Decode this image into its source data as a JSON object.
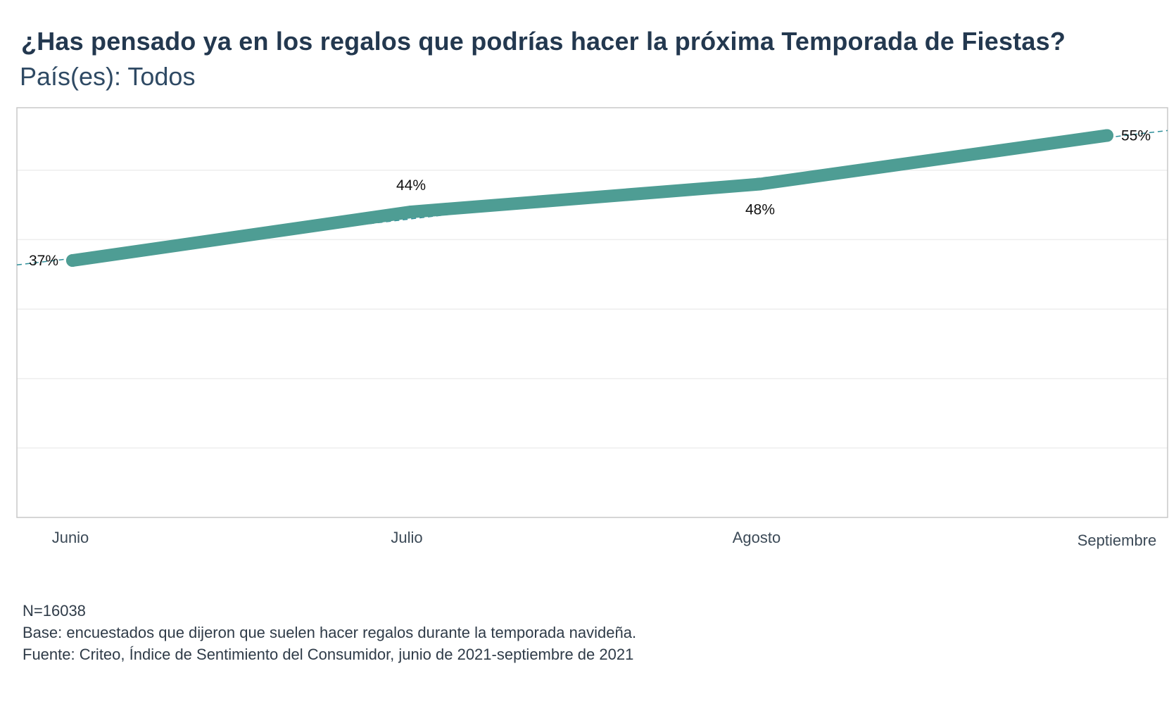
{
  "title": "¿Has pensado ya en los regalos que podrías hacer la próxima Temporada de Fiestas?",
  "subtitle": "País(es): Todos",
  "chart_data": {
    "type": "line",
    "categories": [
      "Junio",
      "Julio",
      "Agosto",
      "Septiembre"
    ],
    "series": [
      {
        "name": "",
        "values": [
          37,
          44,
          48,
          55
        ],
        "value_labels": [
          "37%",
          "44%",
          "48%",
          "55%"
        ]
      }
    ],
    "ylim": [
      0,
      59
    ],
    "grid": true,
    "trendline": true,
    "colors": {
      "line": "#4e9d94",
      "trend": "#2f8f9a",
      "grid": "#eeeeee",
      "frame": "#c8c8c8"
    }
  },
  "footer": {
    "n": "N=16038",
    "base": "Base: encuestados que dijeron que suelen hacer regalos durante la temporada navideña.",
    "source": "Fuente: Criteo, Índice de Sentimiento del Consumidor, junio de 2021-septiembre de 2021"
  }
}
